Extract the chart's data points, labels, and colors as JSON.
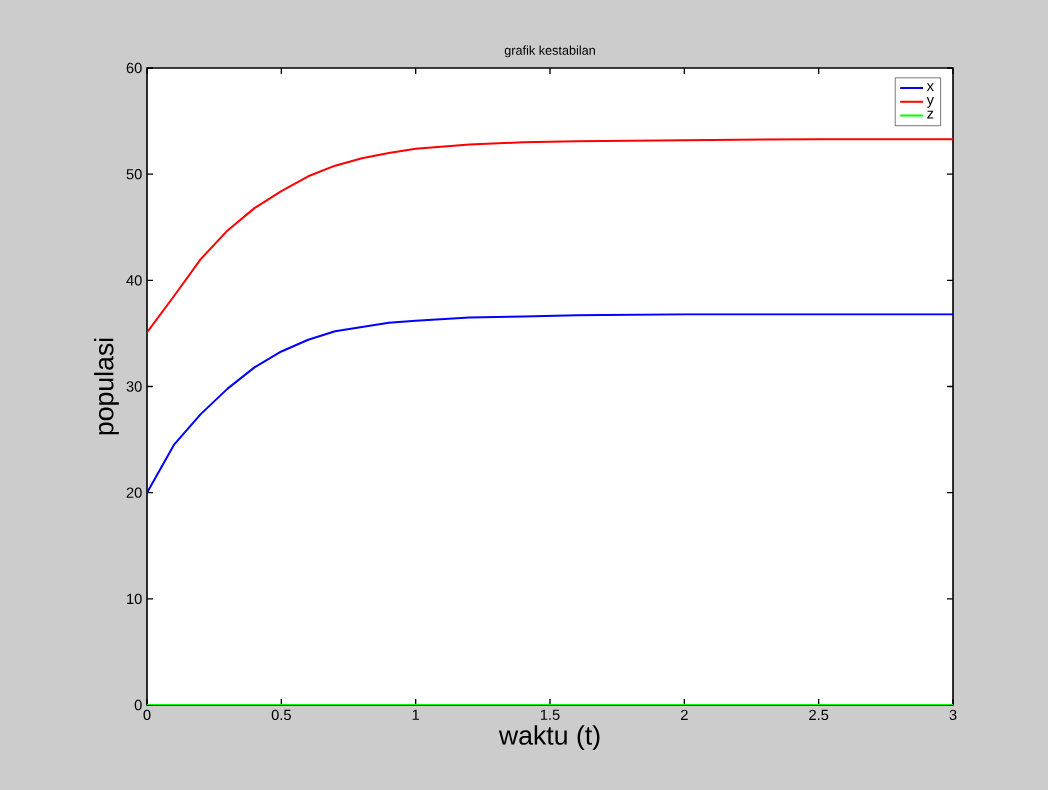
{
  "chart_data": {
    "type": "line",
    "title": "grafik kestabilan",
    "xlabel": "waktu (t)",
    "ylabel": "populasi",
    "x": [
      0,
      0.1,
      0.2,
      0.3,
      0.4,
      0.5,
      0.6,
      0.7,
      0.8,
      0.9,
      1.0,
      1.2,
      1.4,
      1.6,
      2.0,
      2.5,
      3
    ],
    "series": [
      {
        "name": "x",
        "color": "#0000ff",
        "values": [
          20,
          24.5,
          27.4,
          29.8,
          31.8,
          33.3,
          34.4,
          35.2,
          35.6,
          36.0,
          36.2,
          36.5,
          36.6,
          36.7,
          36.8,
          36.8,
          36.8
        ]
      },
      {
        "name": "y",
        "color": "#ff0000",
        "values": [
          35.1,
          38.5,
          42.0,
          44.7,
          46.8,
          48.4,
          49.8,
          50.8,
          51.5,
          52.0,
          52.4,
          52.8,
          53.0,
          53.1,
          53.2,
          53.3,
          53.3
        ]
      },
      {
        "name": "z",
        "color": "#00ff00",
        "values": [
          0,
          0,
          0,
          0,
          0,
          0,
          0,
          0,
          0,
          0,
          0,
          0,
          0,
          0,
          0,
          0,
          0
        ]
      }
    ],
    "xlim": [
      0,
      3
    ],
    "ylim": [
      0,
      60
    ],
    "xticks": [
      0,
      0.5,
      1,
      1.5,
      2,
      2.5,
      3
    ],
    "yticks": [
      0,
      10,
      20,
      30,
      40,
      50,
      60
    ],
    "legend": "top right",
    "marker": "none",
    "line_style": "solid"
  }
}
